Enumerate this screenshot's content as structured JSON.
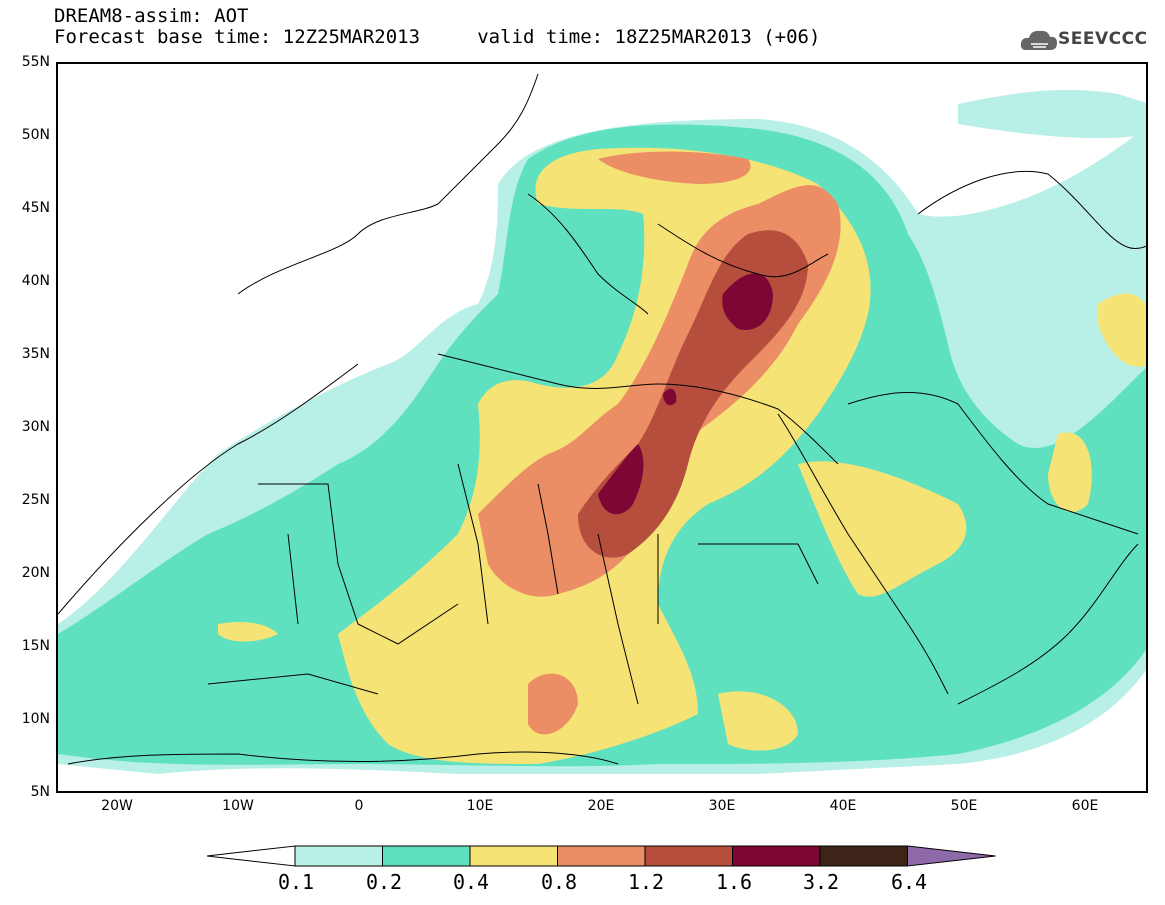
{
  "header": {
    "title_line1": "DREAM8-assim: AOT",
    "title_line2": "Forecast base time: 12Z25MAR2013     valid time: 18Z25MAR2013 (+06)"
  },
  "logo": {
    "text": "SEEVCCC",
    "icon": "cloud-icon"
  },
  "map": {
    "lat_labels": [
      "55N",
      "50N",
      "45N",
      "40N",
      "35N",
      "30N",
      "25N",
      "20N",
      "15N",
      "10N",
      "5N"
    ],
    "lon_labels": [
      "20W",
      "10W",
      "0",
      "10E",
      "20E",
      "30E",
      "40E",
      "50E",
      "60E"
    ],
    "lon_range": [
      -25,
      65
    ],
    "lat_range": [
      5,
      55
    ]
  },
  "legend": {
    "levels": [
      "0.1",
      "0.2",
      "0.4",
      "0.8",
      "1.2",
      "1.6",
      "3.2",
      "6.4"
    ],
    "colors": [
      "#ffffff",
      "#b8efe6",
      "#5fe1c0",
      "#f5e375",
      "#eb8d65",
      "#b64e3d",
      "#7d0634",
      "#3d2318",
      "#8f6aa8"
    ]
  }
}
